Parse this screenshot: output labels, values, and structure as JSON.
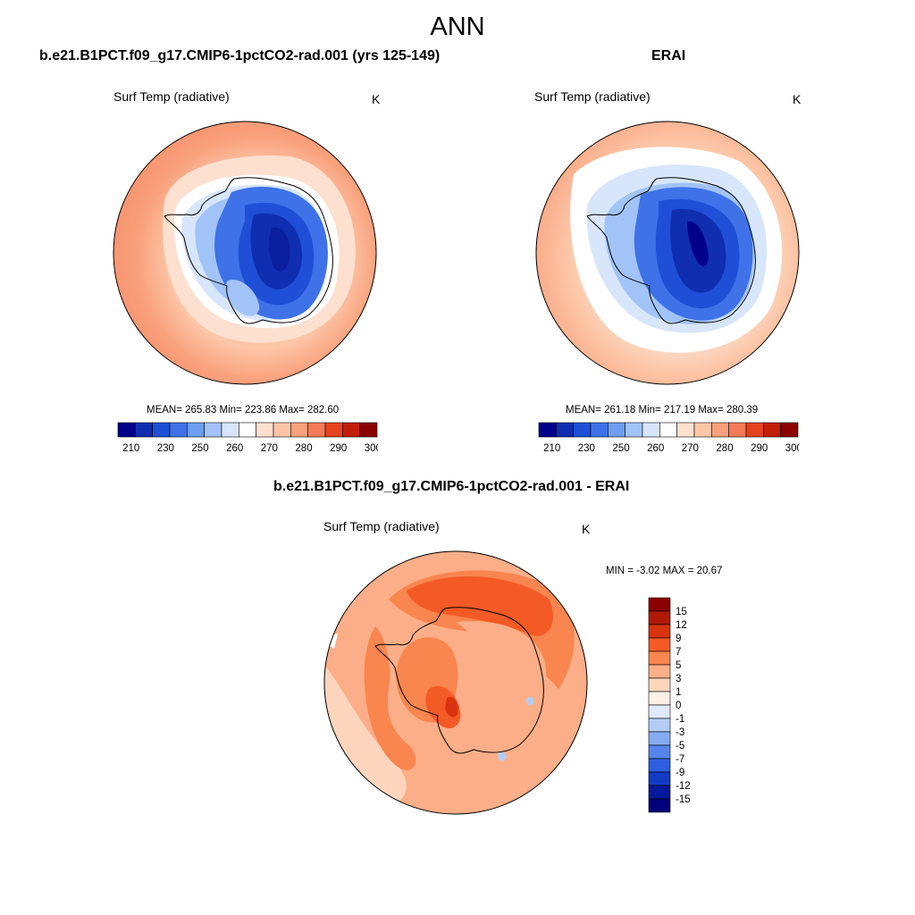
{
  "page_title": "ANN",
  "chart_data": [
    {
      "type": "contour_map",
      "projection": "south-polar stereographic",
      "title": "b.e21.B1PCT.f09_g17.CMIP6-1pctCO2-rad.001 (yrs 125-149)",
      "variable": "Surf Temp (radiative)",
      "units": "K",
      "stats": {
        "mean": 265.83,
        "min": 223.86,
        "max": 282.6,
        "text": "MEAN= 265.83  Min= 223.86  Max= 282.60"
      },
      "colorbar": {
        "orientation": "horizontal",
        "levels": [
          210,
          220,
          230,
          240,
          250,
          255,
          260,
          265,
          270,
          275,
          280,
          285,
          290,
          295,
          300
        ],
        "labels": [
          "210",
          "230",
          "250",
          "260",
          "270",
          "280",
          "290",
          "300"
        ],
        "colors": [
          "#00008b",
          "#0f2fb0",
          "#1f4fd6",
          "#3f72e8",
          "#6d9ef2",
          "#a2c3f7",
          "#d7e6fb",
          "#ffffff",
          "#fde0cf",
          "#fcc6a7",
          "#f9a07c",
          "#f47b58",
          "#e4431e",
          "#c21e08",
          "#8b0000"
        ]
      }
    },
    {
      "type": "contour_map",
      "projection": "south-polar stereographic",
      "title": "ERAI",
      "variable": "Surf Temp (radiative)",
      "units": "K",
      "stats": {
        "mean": 261.18,
        "min": 217.19,
        "max": 280.39,
        "text": "MEAN= 261.18  Min= 217.19  Max= 280.39"
      },
      "colorbar": {
        "orientation": "horizontal",
        "levels": [
          210,
          220,
          230,
          240,
          250,
          255,
          260,
          265,
          270,
          275,
          280,
          285,
          290,
          295,
          300
        ],
        "labels": [
          "210",
          "230",
          "250",
          "260",
          "270",
          "280",
          "290",
          "300"
        ],
        "colors": [
          "#00008b",
          "#0f2fb0",
          "#1f4fd6",
          "#3f72e8",
          "#6d9ef2",
          "#a2c3f7",
          "#d7e6fb",
          "#ffffff",
          "#fde0cf",
          "#fcc6a7",
          "#f9a07c",
          "#f47b58",
          "#e4431e",
          "#c21e08",
          "#8b0000"
        ]
      }
    },
    {
      "type": "contour_map",
      "projection": "south-polar stereographic",
      "title": "b.e21.B1PCT.f09_g17.CMIP6-1pctCO2-rad.001 - ERAI",
      "variable": "Surf Temp (radiative)",
      "units": "K",
      "stats": {
        "min": -3.02,
        "max": 20.67,
        "text": "MIN =  -3.02 MAX =  20.67"
      },
      "colorbar": {
        "orientation": "vertical",
        "levels": [
          15,
          12,
          9,
          7,
          5,
          3,
          1,
          0,
          -1,
          -3,
          -5,
          -7,
          -9,
          -12,
          -15
        ],
        "labels": [
          "15",
          "12",
          "9",
          "7",
          "5",
          "3",
          "1",
          "0",
          "-1",
          "-3",
          "-5",
          "-7",
          "-9",
          "-12",
          "-15"
        ],
        "colors": [
          "#8b0000",
          "#b01a05",
          "#d9330f",
          "#f45a25",
          "#f9854f",
          "#fcae88",
          "#fdd5bc",
          "#fff0e6",
          "#dfeafb",
          "#b3cdf6",
          "#85acf0",
          "#5585eb",
          "#2d5fe0",
          "#123bc4",
          "#06189b",
          "#00007a"
        ]
      }
    }
  ]
}
